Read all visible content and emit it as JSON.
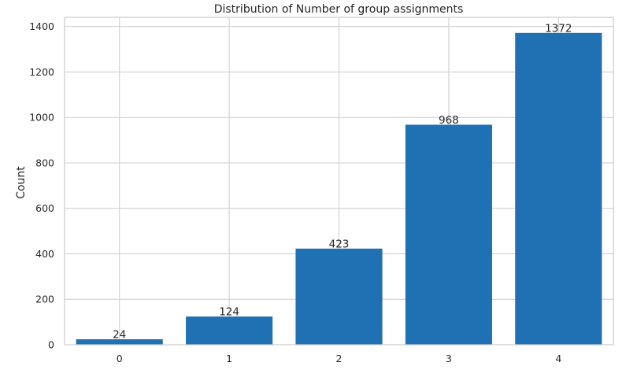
{
  "chart_data": {
    "type": "bar",
    "title": "Distribution of Number of group assignments",
    "xlabel": "",
    "ylabel": "Count",
    "categories": [
      "0",
      "1",
      "2",
      "3",
      "4"
    ],
    "values": [
      24,
      124,
      423,
      968,
      1372
    ],
    "data_labels": [
      "24",
      "124",
      "423",
      "968",
      "1372"
    ],
    "y_ticks": [
      0,
      200,
      400,
      600,
      800,
      1000,
      1200,
      1400
    ],
    "ylim": [
      0,
      1440.6
    ],
    "grid": true,
    "bar_color": "#2070b4",
    "legend": "none"
  }
}
